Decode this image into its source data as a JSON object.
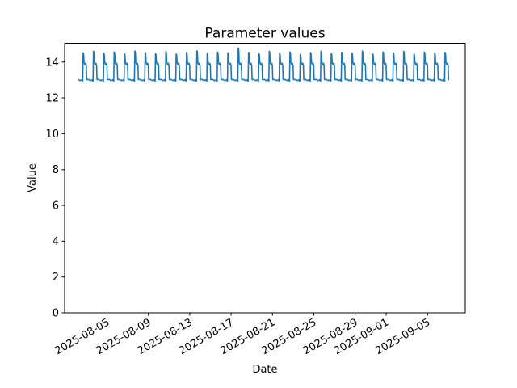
{
  "chart_data": {
    "type": "line",
    "title": "Parameter values",
    "xlabel": "Date",
    "ylabel": "Value",
    "legend": "none",
    "grid": false,
    "line_color": "#1f77b4",
    "axis_color": "#000000",
    "background_color": "#ffffff",
    "ylim": [
      0,
      15.05
    ],
    "yticks": [
      0,
      2,
      4,
      6,
      8,
      10,
      12,
      14
    ],
    "x_epoch": "2025-08-02 06:00",
    "xlim_days": [
      -1.35,
      37.4
    ],
    "tick_rotation_deg": 30,
    "xticks": [
      {
        "t": 2.75,
        "label": "2025-08-05"
      },
      {
        "t": 6.75,
        "label": "2025-08-09"
      },
      {
        "t": 10.75,
        "label": "2025-08-13"
      },
      {
        "t": 14.75,
        "label": "2025-08-17"
      },
      {
        "t": 18.75,
        "label": "2025-08-21"
      },
      {
        "t": 22.75,
        "label": "2025-08-25"
      },
      {
        "t": 26.75,
        "label": "2025-08-29"
      },
      {
        "t": 29.75,
        "label": "2025-09-01"
      },
      {
        "t": 33.75,
        "label": "2025-09-05"
      }
    ],
    "waveform": {
      "description": "Daily repeating cycle sampled sub-daily: baseline ~13.0, brief dip ~12.9, sharp spike to ~14.45-14.78, step down to plateau ~13.9, then drop back to baseline ~13.0. 36 daily cycles from 2025-08-02 to 2025-09-07.",
      "n_days": 36,
      "day_points": [
        [
          0.0,
          13.02
        ],
        [
          0.15,
          12.96
        ],
        [
          0.3,
          13.01
        ],
        [
          0.4,
          12.93
        ],
        [
          0.44,
          "peak",
          0
        ],
        [
          0.49,
          "peak",
          -0.08
        ],
        [
          0.53,
          13.97
        ],
        [
          0.61,
          13.86
        ],
        [
          0.68,
          13.93
        ],
        [
          0.74,
          13.84
        ],
        [
          0.78,
          13.02
        ]
      ],
      "peaks": [
        14.52,
        14.61,
        14.5,
        14.57,
        14.46,
        14.62,
        14.53,
        14.48,
        14.58,
        14.45,
        14.55,
        14.63,
        14.49,
        14.56,
        14.52,
        14.78,
        14.54,
        14.47,
        14.6,
        14.51,
        14.57,
        14.44,
        14.53,
        14.61,
        14.48,
        14.55,
        14.5,
        14.62,
        14.46,
        14.57,
        14.52,
        14.6,
        14.45,
        14.56,
        14.5,
        14.54
      ]
    }
  }
}
